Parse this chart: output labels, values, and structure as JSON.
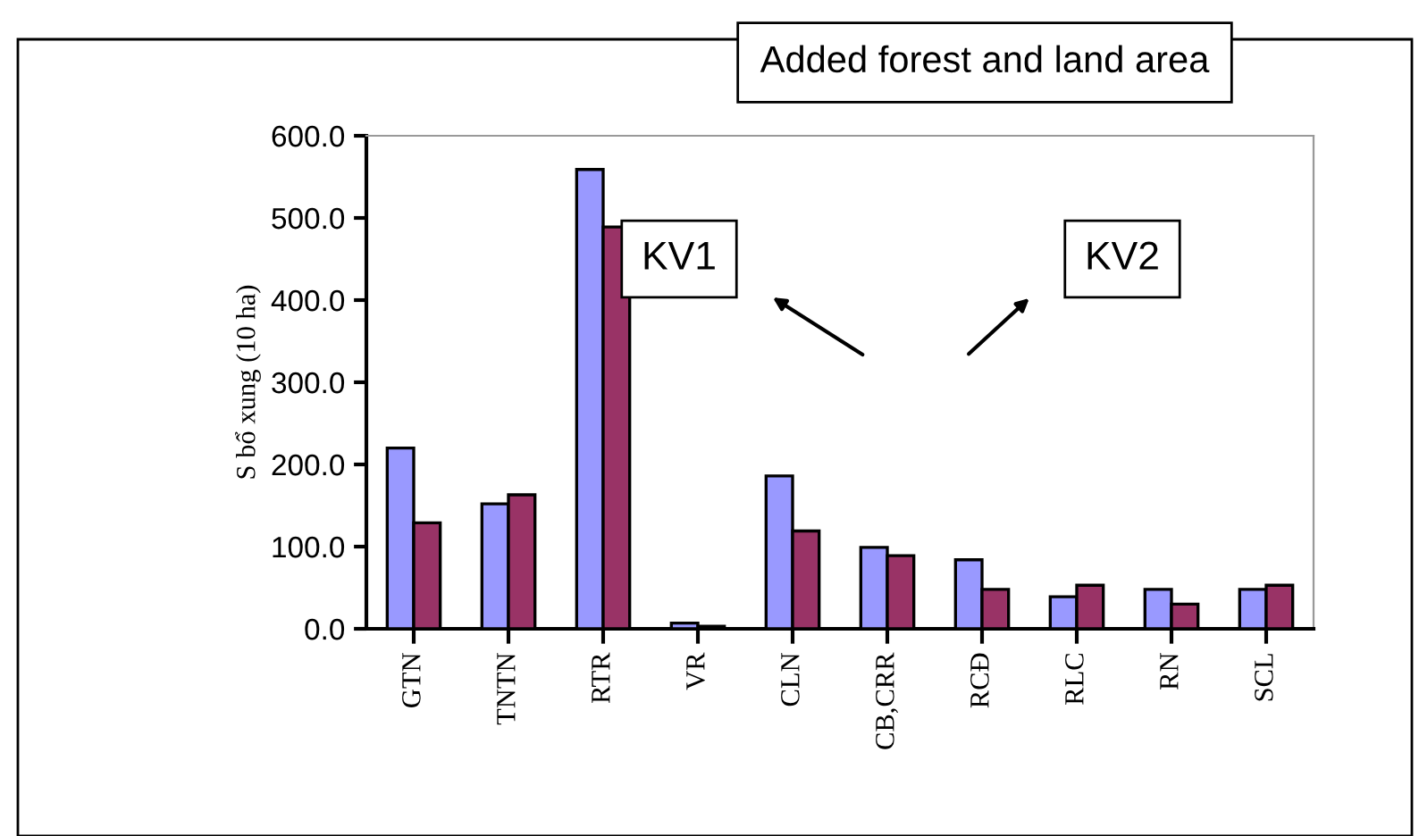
{
  "chart_data": {
    "type": "bar",
    "title": "Added forest and land area",
    "ylabel": "S bổ xung (10 ha)",
    "categories": [
      "GTN",
      "TNTN",
      "RTR",
      "VR",
      "CLN",
      "CB,CRR",
      "RCĐ",
      "RLC",
      "RN",
      "SCL"
    ],
    "series": [
      {
        "color": "#9999ff",
        "values": [
          220,
          152,
          559,
          7,
          186,
          99,
          84,
          39,
          48,
          48
        ]
      },
      {
        "color": "#993366",
        "values": [
          129,
          163,
          489,
          3,
          119,
          89,
          48,
          53,
          30,
          53
        ]
      }
    ],
    "annotations": [
      "KV1",
      "KV2"
    ],
    "ylim": [
      0,
      600
    ],
    "yticks": [
      {
        "value": 0,
        "label": "0.0"
      },
      {
        "value": 100,
        "label": "100.0"
      },
      {
        "value": 200,
        "label": "200.0"
      },
      {
        "value": 300,
        "label": "300.0"
      },
      {
        "value": 400,
        "label": "400.0"
      },
      {
        "value": 500,
        "label": "500.0"
      },
      {
        "value": 600,
        "label": "600.0"
      }
    ],
    "grid": false,
    "legend": false
  }
}
